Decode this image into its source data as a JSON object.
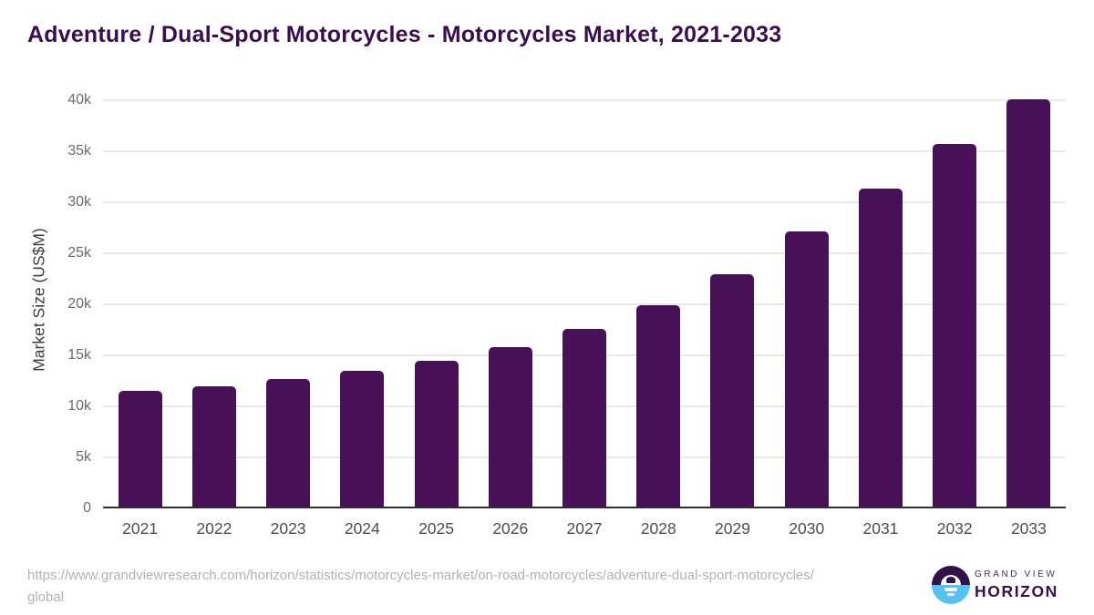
{
  "title": "Adventure / Dual-Sport Motorcycles - Motorcycles Market, 2021-2033",
  "y_axis": {
    "title": "Market Size (US$M)",
    "ticks": [
      {
        "label": "40k",
        "value": 40000
      },
      {
        "label": "35k",
        "value": 35000
      },
      {
        "label": "30k",
        "value": 30000
      },
      {
        "label": "25k",
        "value": 25000
      },
      {
        "label": "20k",
        "value": 20000
      },
      {
        "label": "15k",
        "value": 15000
      },
      {
        "label": "10k",
        "value": 10000
      },
      {
        "label": "5k",
        "value": 5000
      },
      {
        "label": "0",
        "value": 0
      }
    ]
  },
  "source": {
    "line1": "https://www.grandviewresearch.com/horizon/statistics/motorcycles-market/on-road-motorcycles/adventure-dual-sport-motorcycles/",
    "line2": "global"
  },
  "logo": {
    "top": "GRAND VIEW",
    "bottom": "HORIZON"
  },
  "colors": {
    "bar": "#471057",
    "title": "#3A0E4E",
    "grid": "#E9E9E9",
    "baseline": "#2F2F2F",
    "tick_label": "#6B6B6B",
    "x_label": "#4D4D4D",
    "url_text": "#B3B2B2",
    "logo_purple": "#321148",
    "logo_blue": "#55C3F1"
  },
  "chart_data": {
    "type": "bar",
    "title": "Adventure / Dual-Sport Motorcycles - Motorcycles Market, 2021-2033",
    "categories": [
      "2021",
      "2022",
      "2023",
      "2024",
      "2025",
      "2026",
      "2027",
      "2028",
      "2029",
      "2030",
      "2031",
      "2032",
      "2033"
    ],
    "values": [
      11300,
      11800,
      12500,
      13300,
      14300,
      15600,
      17400,
      19700,
      22800,
      27000,
      31200,
      35500,
      39900
    ],
    "xlabel": "",
    "ylabel": "Market Size (US$M)",
    "unit": "US$M",
    "ylim": [
      0,
      40000
    ],
    "ytick_step": 5000,
    "grid": true,
    "legend": false,
    "bar_color": "#471057"
  }
}
